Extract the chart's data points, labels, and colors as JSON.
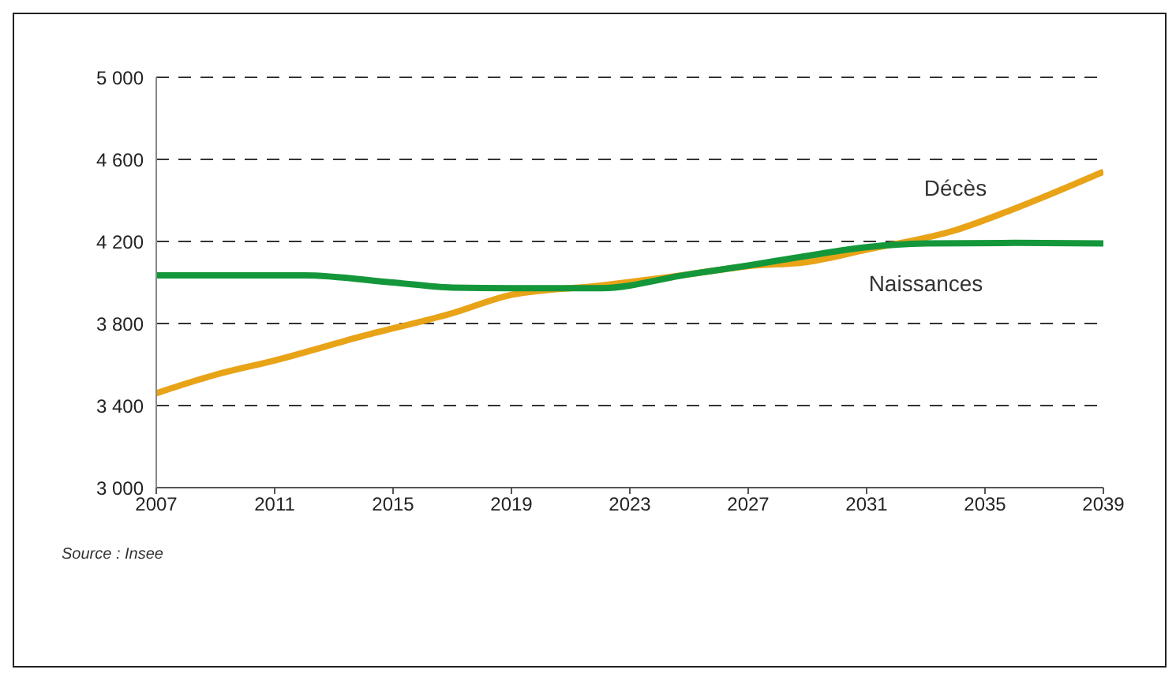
{
  "chart_data": {
    "type": "line",
    "xlim": [
      2007,
      2039
    ],
    "xticks": [
      2007,
      2011,
      2015,
      2019,
      2023,
      2027,
      2031,
      2035,
      2039
    ],
    "ylim": [
      3000,
      5000
    ],
    "yticks": [
      {
        "value": 3000,
        "label": "3 000"
      },
      {
        "value": 3400,
        "label": "3 400"
      },
      {
        "value": 3800,
        "label": "3 800"
      },
      {
        "value": 4200,
        "label": "4 200"
      },
      {
        "value": 4600,
        "label": "4 600"
      },
      {
        "value": 5000,
        "label": "5 000"
      }
    ],
    "grid": "y",
    "marker": "none",
    "series": [
      {
        "name": "Décès",
        "color": "#e8a317",
        "x": [
          2007,
          2009,
          2011,
          2014,
          2017,
          2019,
          2022,
          2025,
          2027,
          2029,
          2031,
          2034,
          2036,
          2039
        ],
        "values": [
          3460,
          3550,
          3620,
          3740,
          3850,
          3940,
          3985,
          4040,
          4080,
          4100,
          4160,
          4255,
          4360,
          4540
        ]
      },
      {
        "name": "Naissances",
        "color": "#14973a",
        "x": [
          2007,
          2009,
          2012,
          2015,
          2017,
          2019,
          2022,
          2025,
          2027,
          2029,
          2031,
          2033,
          2036,
          2039
        ],
        "values": [
          4035,
          4035,
          4035,
          4000,
          3975,
          3972,
          3972,
          4040,
          4083,
          4130,
          4172,
          4190,
          4193,
          4190
        ]
      }
    ],
    "annotations": [
      "Source : Insee"
    ]
  }
}
